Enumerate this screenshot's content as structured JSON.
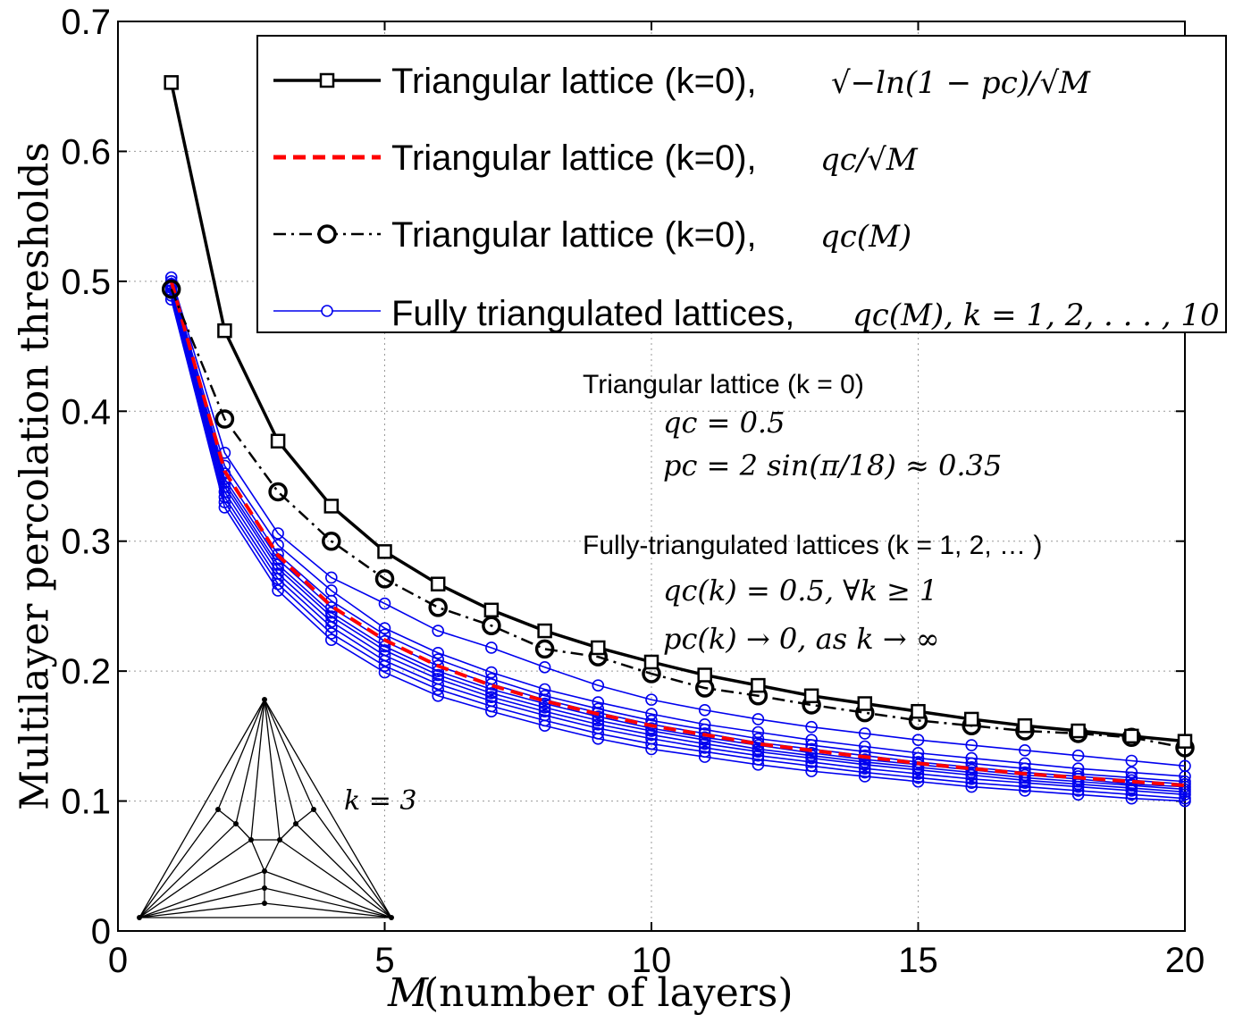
{
  "chart_data": {
    "type": "line",
    "title": "",
    "xlabel_math": "M",
    "xlabel_rest": "(number of layers)",
    "ylabel": "Multilayer percolation thresholds",
    "xlim": [
      0,
      20
    ],
    "ylim": [
      0,
      0.7
    ],
    "xticks": [
      "0",
      "5",
      "10",
      "15",
      "20"
    ],
    "yticks": [
      "0",
      "0.1",
      "0.2",
      "0.3",
      "0.4",
      "0.5",
      "0.6",
      "0.7"
    ],
    "grid": true,
    "legend_position": "top-right",
    "x": [
      1,
      2,
      3,
      4,
      5,
      6,
      7,
      8,
      9,
      10,
      11,
      12,
      13,
      14,
      15,
      16,
      17,
      18,
      19,
      20
    ],
    "series": [
      {
        "name": "Triangular lattice (k=0), √(−ln(1 − p_c))/√M",
        "legend_main": "Triangular lattice (k=0),",
        "legend_math": "√−ln(1 − pc)/√M",
        "color": "#000000",
        "style": "solid-square",
        "values": [
          0.653,
          0.462,
          0.377,
          0.327,
          0.292,
          0.267,
          0.247,
          0.231,
          0.218,
          0.207,
          0.197,
          0.189,
          0.181,
          0.175,
          0.169,
          0.163,
          0.158,
          0.154,
          0.15,
          0.146
        ]
      },
      {
        "name": "Triangular lattice (k=0), q_c/√M",
        "legend_main": "Triangular lattice (k=0),",
        "legend_math": "qc/√M",
        "color": "#ff0000",
        "style": "dashed",
        "values": [
          0.5,
          0.354,
          0.289,
          0.25,
          0.224,
          0.204,
          0.189,
          0.177,
          0.167,
          0.158,
          0.151,
          0.144,
          0.139,
          0.134,
          0.129,
          0.125,
          0.121,
          0.118,
          0.115,
          0.112
        ]
      },
      {
        "name": "Triangular lattice (k=0), q_c(M)",
        "legend_main": "Triangular lattice (k=0),",
        "legend_math": "qc(M)",
        "color": "#000000",
        "style": "dashdot-circle",
        "values": [
          0.494,
          0.394,
          0.338,
          0.3,
          0.271,
          0.249,
          0.235,
          0.217,
          0.211,
          0.198,
          0.187,
          0.181,
          0.174,
          0.168,
          0.162,
          0.158,
          0.154,
          0.152,
          0.149,
          0.141
        ]
      },
      {
        "name": "Fully triangulated lattices, q_c(M), k = 1, 2, ..., 10",
        "legend_main": "Fully triangulated lattices,",
        "legend_math": "qc(M), k = 1, 2, . . . , 10",
        "color": "#0000ee",
        "style": "thin-circle",
        "family": [
          {
            "k": 1,
            "values": [
              0.503,
              0.368,
              0.306,
              0.272,
              0.252,
              0.231,
              0.218,
              0.203,
              0.189,
              0.178,
              0.17,
              0.163,
              0.157,
              0.152,
              0.147,
              0.143,
              0.139,
              0.135,
              0.131,
              0.127
            ]
          },
          {
            "k": 2,
            "values": [
              0.5,
              0.358,
              0.297,
              0.262,
              0.233,
              0.214,
              0.199,
              0.186,
              0.176,
              0.167,
              0.159,
              0.153,
              0.147,
              0.142,
              0.137,
              0.133,
              0.129,
              0.125,
              0.122,
              0.119
            ]
          },
          {
            "k": 3,
            "values": [
              0.498,
              0.352,
              0.29,
              0.254,
              0.228,
              0.209,
              0.194,
              0.181,
              0.171,
              0.162,
              0.155,
              0.148,
              0.143,
              0.138,
              0.133,
              0.129,
              0.125,
              0.121,
              0.118,
              0.115
            ]
          },
          {
            "k": 4,
            "values": [
              0.497,
              0.348,
              0.286,
              0.249,
              0.223,
              0.204,
              0.19,
              0.178,
              0.168,
              0.159,
              0.152,
              0.145,
              0.14,
              0.135,
              0.13,
              0.126,
              0.122,
              0.119,
              0.116,
              0.113
            ]
          },
          {
            "k": 5,
            "values": [
              0.496,
              0.345,
              0.282,
              0.245,
              0.219,
              0.2,
              0.186,
              0.175,
              0.165,
              0.156,
              0.149,
              0.143,
              0.137,
              0.132,
              0.128,
              0.124,
              0.12,
              0.117,
              0.113,
              0.111
            ]
          },
          {
            "k": 6,
            "values": [
              0.495,
              0.342,
              0.279,
              0.242,
              0.216,
              0.197,
              0.183,
              0.172,
              0.162,
              0.154,
              0.147,
              0.14,
              0.135,
              0.13,
              0.126,
              0.122,
              0.118,
              0.115,
              0.112,
              0.109
            ]
          },
          {
            "k": 7,
            "values": [
              0.493,
              0.338,
              0.275,
              0.238,
              0.212,
              0.194,
              0.18,
              0.169,
              0.159,
              0.151,
              0.144,
              0.138,
              0.133,
              0.128,
              0.124,
              0.12,
              0.116,
              0.113,
              0.11,
              0.107
            ]
          },
          {
            "k": 8,
            "values": [
              0.491,
              0.334,
              0.271,
              0.234,
              0.208,
              0.19,
              0.177,
              0.166,
              0.156,
              0.148,
              0.141,
              0.135,
              0.13,
              0.125,
              0.121,
              0.117,
              0.114,
              0.111,
              0.108,
              0.105
            ]
          },
          {
            "k": 9,
            "values": [
              0.489,
              0.33,
              0.267,
              0.229,
              0.204,
              0.186,
              0.173,
              0.162,
              0.152,
              0.144,
              0.138,
              0.132,
              0.127,
              0.122,
              0.118,
              0.114,
              0.111,
              0.108,
              0.105,
              0.102
            ]
          },
          {
            "k": 10,
            "values": [
              0.486,
              0.326,
              0.262,
              0.224,
              0.199,
              0.181,
              0.169,
              0.158,
              0.148,
              0.14,
              0.134,
              0.128,
              0.123,
              0.119,
              0.115,
              0.111,
              0.108,
              0.105,
              0.102,
              0.1
            ]
          }
        ]
      }
    ],
    "annotations": {
      "tri_title": "Triangular lattice (k = 0)",
      "tri_qc": "qc = 0.5",
      "tri_pc": "pc = 2 sin(π/18) ≈ 0.35",
      "full_title": "Fully-triangulated lattices (k = 1, 2, … )",
      "full_qc": "qc(k) = 0.5, ∀k ≥ 1",
      "full_pc": "pc(k) → 0, as k → ∞",
      "inset_label": "k = 3"
    }
  }
}
